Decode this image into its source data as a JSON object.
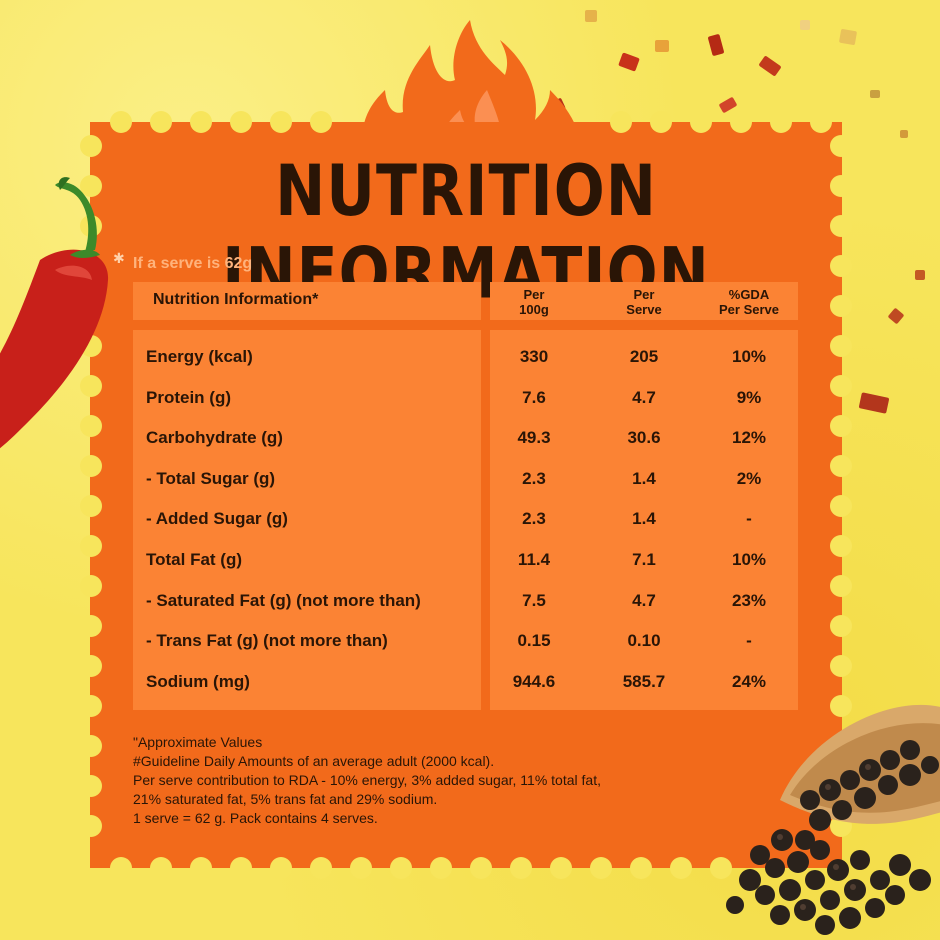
{
  "title": "NUTRITION INFORMATION",
  "serve_note": "If a serve is 62g",
  "table": {
    "header": {
      "label": "Nutrition Information*",
      "col1": [
        "Per",
        "100g"
      ],
      "col2": [
        "Per",
        "Serve"
      ],
      "col3": [
        "%GDA",
        "Per Serve"
      ]
    },
    "rows": [
      {
        "label": "Energy (kcal)",
        "per100": "330",
        "perServe": "205",
        "gda": "10%"
      },
      {
        "label": "Protein (g)",
        "per100": "7.6",
        "perServe": "4.7",
        "gda": "9%"
      },
      {
        "label": "Carbohydrate (g)",
        "per100": "49.3",
        "perServe": "30.6",
        "gda": "12%"
      },
      {
        "label": " - Total Sugar (g)",
        "per100": "2.3",
        "perServe": "1.4",
        "gda": "2%"
      },
      {
        "label": " - Added Sugar (g)",
        "per100": "2.3",
        "perServe": "1.4",
        "gda": "-"
      },
      {
        "label": "Total Fat (g)",
        "per100": "11.4",
        "perServe": "7.1",
        "gda": "10%"
      },
      {
        "label": " - Saturated Fat (g) (not more than)",
        "per100": "7.5",
        "perServe": "4.7",
        "gda": "23%"
      },
      {
        "label": " - Trans Fat (g) (not more than)",
        "per100": "0.15",
        "perServe": "0.10",
        "gda": "-"
      },
      {
        "label": "Sodium (mg)",
        "per100": "944.6",
        "perServe": "585.7",
        "gda": "24%"
      }
    ]
  },
  "footnotes": [
    "\"Approximate Values",
    "#Guideline Daily Amounts of an average adult (2000 kcal).",
    "Per serve contribution to RDA - 10% energy, 3% added sugar, 11% total fat,",
    "21% saturated fat, 5% trans fat and 29% sodium.",
    "1 serve = 62 g. Pack contains 4 serves."
  ],
  "colors": {
    "background": "#f7e55c",
    "card": "#f26a1b",
    "panel": "#fb8334",
    "text": "#2a1506"
  },
  "icons": {
    "flame": "flame-icon",
    "chili": "red-chili-pepper",
    "peppercorns": "black-peppercorn-scoop"
  }
}
